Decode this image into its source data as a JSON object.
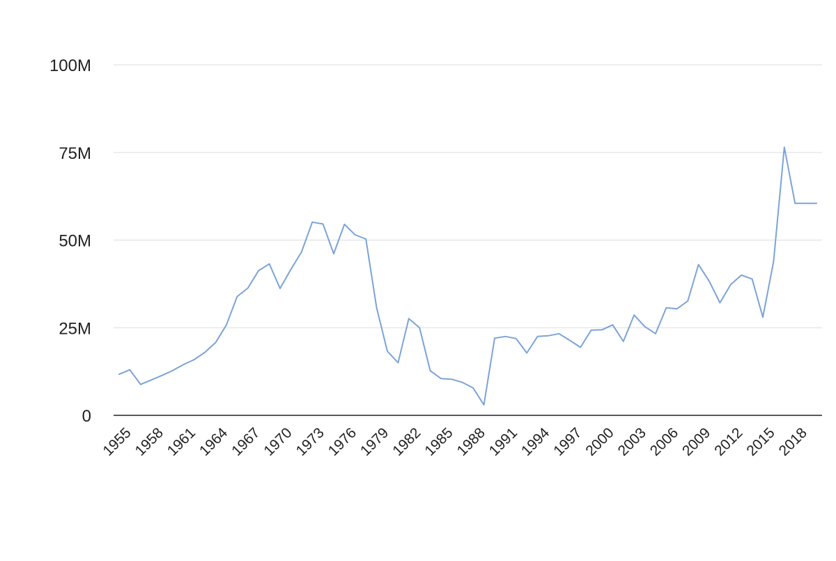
{
  "chart_data": {
    "type": "line",
    "title": "",
    "xlabel": "",
    "ylabel": "",
    "ylim": [
      0,
      100000000
    ],
    "y_ticks": [
      {
        "value": 0,
        "label": "0"
      },
      {
        "value": 25000000,
        "label": "25M"
      },
      {
        "value": 50000000,
        "label": "50M"
      },
      {
        "value": 75000000,
        "label": "75M"
      },
      {
        "value": 100000000,
        "label": "100M"
      }
    ],
    "x_tick_labels": [
      "1955",
      "1958",
      "1961",
      "1964",
      "1967",
      "1970",
      "1973",
      "1976",
      "1979",
      "1982",
      "1985",
      "1988",
      "1991",
      "1994",
      "1997",
      "2000",
      "2003",
      "2006",
      "2009",
      "2012",
      "2015",
      "2018"
    ],
    "grid": true,
    "legend": "none",
    "line_color": "#7ba3d8",
    "grid_color": "#dddddd",
    "axis_color": "#222222",
    "series": [
      {
        "x": [
          1955,
          1956,
          1957,
          1958,
          1959,
          1960,
          1961,
          1962,
          1963,
          1964,
          1965,
          1966,
          1967,
          1968,
          1969,
          1970,
          1971,
          1972,
          1973,
          1974,
          1975,
          1976,
          1977,
          1978,
          1979,
          1980,
          1981,
          1982,
          1983,
          1984,
          1985,
          1986,
          1987,
          1988,
          1989,
          1990,
          1991,
          1992,
          1993,
          1994,
          1995,
          1996,
          1997,
          1998,
          1999,
          2000,
          2001,
          2002,
          2003,
          2004,
          2005,
          2006,
          2007,
          2008,
          2009,
          2010,
          2011,
          2012,
          2013,
          2014,
          2015,
          2016,
          2017,
          2018,
          2019,
          2020
        ],
        "values": [
          11700000,
          13000000,
          8800000,
          10100000,
          11400000,
          12800000,
          14500000,
          15900000,
          18000000,
          20800000,
          25800000,
          33900000,
          36300000,
          41300000,
          43200000,
          36200000,
          41600000,
          46600000,
          55100000,
          54600000,
          46100000,
          54500000,
          51500000,
          50300000,
          30700000,
          18300000,
          15000000,
          27600000,
          25000000,
          12700000,
          10500000,
          10300000,
          9400000,
          7800000,
          3000000,
          22000000,
          22500000,
          21900000,
          17800000,
          22500000,
          22700000,
          23300000,
          21400000,
          19400000,
          24300000,
          24400000,
          25800000,
          21100000,
          28600000,
          25300000,
          23300000,
          30700000,
          30400000,
          32600000,
          43000000,
          38300000,
          32100000,
          37300000,
          40000000,
          38900000,
          28000000,
          43900000,
          76500000,
          60500000,
          60500000,
          60500000
        ]
      }
    ]
  }
}
